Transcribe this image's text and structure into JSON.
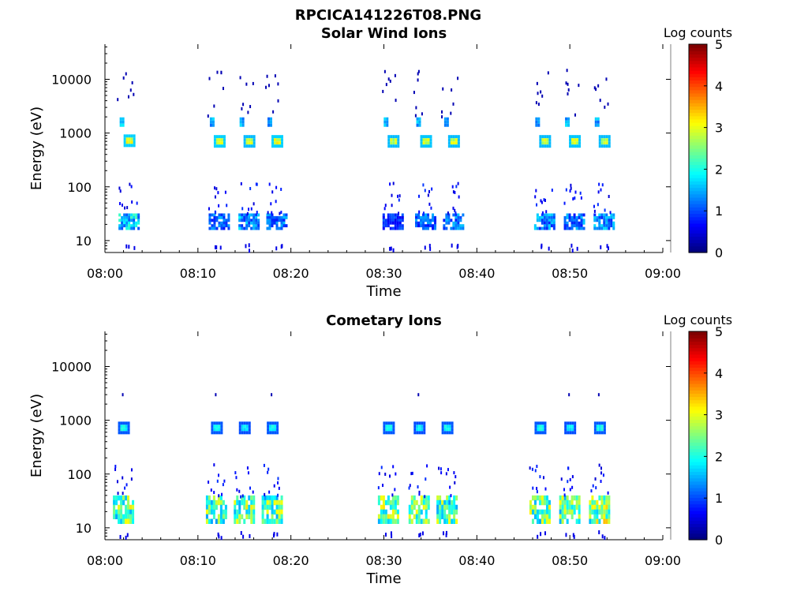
{
  "figure": {
    "title": "RPCICA141226T08.PNG"
  },
  "chart_data": [
    {
      "type": "heatmap",
      "title": "Solar Wind Ions",
      "xlabel": "Time",
      "ylabel": "Energy (eV)",
      "x_ticks": [
        "08:00",
        "08:10",
        "08:20",
        "08:30",
        "08:40",
        "08:50",
        "09:00"
      ],
      "xlim": [
        "08:00",
        "09:00"
      ],
      "y_scale": "log",
      "y_ticks": [
        10,
        100,
        1000,
        10000
      ],
      "y_tick_labels": [
        "10",
        "100",
        "1000",
        "10000"
      ],
      "ylim": [
        6,
        45000
      ],
      "colorbar": {
        "label": "Log counts",
        "range": [
          0,
          5
        ],
        "ticks": [
          "0",
          "1",
          "2",
          "3",
          "4",
          "5"
        ],
        "colormap": "jet"
      },
      "bursts": [
        {
          "t": "08:02.6",
          "low_e": [
            16,
            32
          ],
          "low_level": 1.8,
          "mid_e": 720,
          "mid_level": 3.0,
          "hi_e": 1600,
          "hi_level": 1.7
        },
        {
          "t": "08:12.3",
          "low_e": [
            16,
            32
          ],
          "low_level": 1.2,
          "mid_e": 700,
          "mid_level": 3.0,
          "hi_e": 1600,
          "hi_level": 1.6
        },
        {
          "t": "08:15.5",
          "low_e": [
            16,
            32
          ],
          "low_level": 1.5,
          "mid_e": 700,
          "mid_level": 2.8,
          "hi_e": 1600,
          "hi_level": 1.6
        },
        {
          "t": "08:18.5",
          "low_e": [
            16,
            32
          ],
          "low_level": 1.3,
          "mid_e": 700,
          "mid_level": 3.0,
          "hi_e": 1600,
          "hi_level": 1.6
        },
        {
          "t": "08:31.0",
          "low_e": [
            16,
            32
          ],
          "low_level": 0.9,
          "mid_e": 700,
          "mid_level": 2.8,
          "hi_e": 1600,
          "hi_level": 1.7
        },
        {
          "t": "08:34.5",
          "low_e": [
            16,
            32
          ],
          "low_level": 1.2,
          "mid_e": 700,
          "mid_level": 2.9,
          "hi_e": 1600,
          "hi_level": 1.6
        },
        {
          "t": "08:37.5",
          "low_e": [
            16,
            32
          ],
          "low_level": 1.3,
          "mid_e": 700,
          "mid_level": 2.8,
          "hi_e": 1600,
          "hi_level": 1.6
        },
        {
          "t": "08:47.3",
          "low_e": [
            16,
            32
          ],
          "low_level": 1.4,
          "mid_e": 700,
          "mid_level": 2.8,
          "hi_e": 1600,
          "hi_level": 1.6
        },
        {
          "t": "08:50.5",
          "low_e": [
            16,
            32
          ],
          "low_level": 1.3,
          "mid_e": 700,
          "mid_level": 2.9,
          "hi_e": 1600,
          "hi_level": 1.6
        },
        {
          "t": "08:53.7",
          "low_e": [
            16,
            32
          ],
          "low_level": 1.4,
          "mid_e": 700,
          "mid_level": 2.8,
          "hi_e": 1600,
          "hi_level": 1.6
        }
      ]
    },
    {
      "type": "heatmap",
      "title": "Cometary Ions",
      "xlabel": "Time",
      "ylabel": "Energy (eV)",
      "x_ticks": [
        "08:00",
        "08:10",
        "08:20",
        "08:30",
        "08:40",
        "08:50",
        "09:00"
      ],
      "xlim": [
        "08:00",
        "09:00"
      ],
      "y_scale": "log",
      "y_ticks": [
        10,
        100,
        1000,
        10000
      ],
      "y_tick_labels": [
        "10",
        "100",
        "1000",
        "10000"
      ],
      "ylim": [
        6,
        45000
      ],
      "colorbar": {
        "label": "Log counts",
        "range": [
          0,
          5
        ],
        "ticks": [
          "0",
          "1",
          "2",
          "3",
          "4",
          "5"
        ],
        "colormap": "jet"
      },
      "bursts": [
        {
          "t": "08:02.0",
          "low_e": [
            12,
            40
          ],
          "low_level": 2.6,
          "mid_e": 720,
          "mid_level": 1.9,
          "hi_e": 0,
          "hi_level": 0
        },
        {
          "t": "08:12.0",
          "low_e": [
            12,
            40
          ],
          "low_level": 2.5,
          "mid_e": 720,
          "mid_level": 1.9,
          "hi_e": 0,
          "hi_level": 0
        },
        {
          "t": "08:15.0",
          "low_e": [
            12,
            40
          ],
          "low_level": 2.6,
          "mid_e": 720,
          "mid_level": 1.8,
          "hi_e": 0,
          "hi_level": 0
        },
        {
          "t": "08:18.0",
          "low_e": [
            12,
            40
          ],
          "low_level": 2.5,
          "mid_e": 720,
          "mid_level": 1.9,
          "hi_e": 0,
          "hi_level": 0
        },
        {
          "t": "08:30.5",
          "low_e": [
            12,
            40
          ],
          "low_level": 2.6,
          "mid_e": 720,
          "mid_level": 1.9,
          "hi_e": 0,
          "hi_level": 0
        },
        {
          "t": "08:33.8",
          "low_e": [
            12,
            40
          ],
          "low_level": 2.5,
          "mid_e": 720,
          "mid_level": 1.8,
          "hi_e": 0,
          "hi_level": 0
        },
        {
          "t": "08:36.8",
          "low_e": [
            12,
            40
          ],
          "low_level": 2.5,
          "mid_e": 720,
          "mid_level": 1.9,
          "hi_e": 0,
          "hi_level": 0
        },
        {
          "t": "08:46.8",
          "low_e": [
            12,
            40
          ],
          "low_level": 2.6,
          "mid_e": 720,
          "mid_level": 1.9,
          "hi_e": 0,
          "hi_level": 0
        },
        {
          "t": "08:50.0",
          "low_e": [
            12,
            40
          ],
          "low_level": 2.5,
          "mid_e": 720,
          "mid_level": 1.8,
          "hi_e": 0,
          "hi_level": 0
        },
        {
          "t": "08:53.2",
          "low_e": [
            12,
            40
          ],
          "low_level": 2.8,
          "mid_e": 720,
          "mid_level": 1.9,
          "hi_e": 0,
          "hi_level": 0
        }
      ]
    }
  ]
}
